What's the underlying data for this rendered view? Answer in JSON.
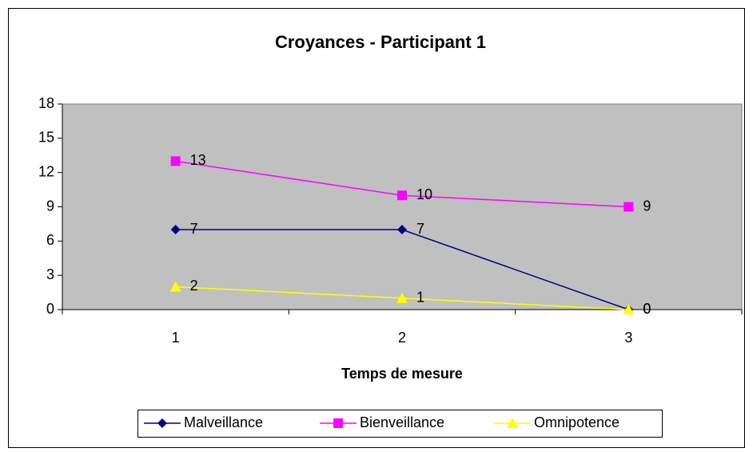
{
  "chart_data": {
    "type": "line",
    "title": "Croyances - Participant 1",
    "x_label": "Temps de mesure",
    "categories": [
      "1",
      "2",
      "3"
    ],
    "series": [
      {
        "name": "Malveillance",
        "color": "#000080",
        "marker": "diamond",
        "values": [
          7,
          7,
          0
        ]
      },
      {
        "name": "Bienveillance",
        "color": "#ff00ff",
        "marker": "square",
        "values": [
          13,
          10,
          9
        ]
      },
      {
        "name": "Omnipotence",
        "color": "#ffff00",
        "marker": "triangle",
        "values": [
          2,
          1,
          0
        ]
      }
    ],
    "ylim": [
      0,
      18
    ],
    "yticks": [
      0,
      3,
      6,
      9,
      12,
      15,
      18
    ],
    "grid": false,
    "legend": "bottom",
    "plot_background": "#c0c0c0",
    "data_labels": true
  }
}
